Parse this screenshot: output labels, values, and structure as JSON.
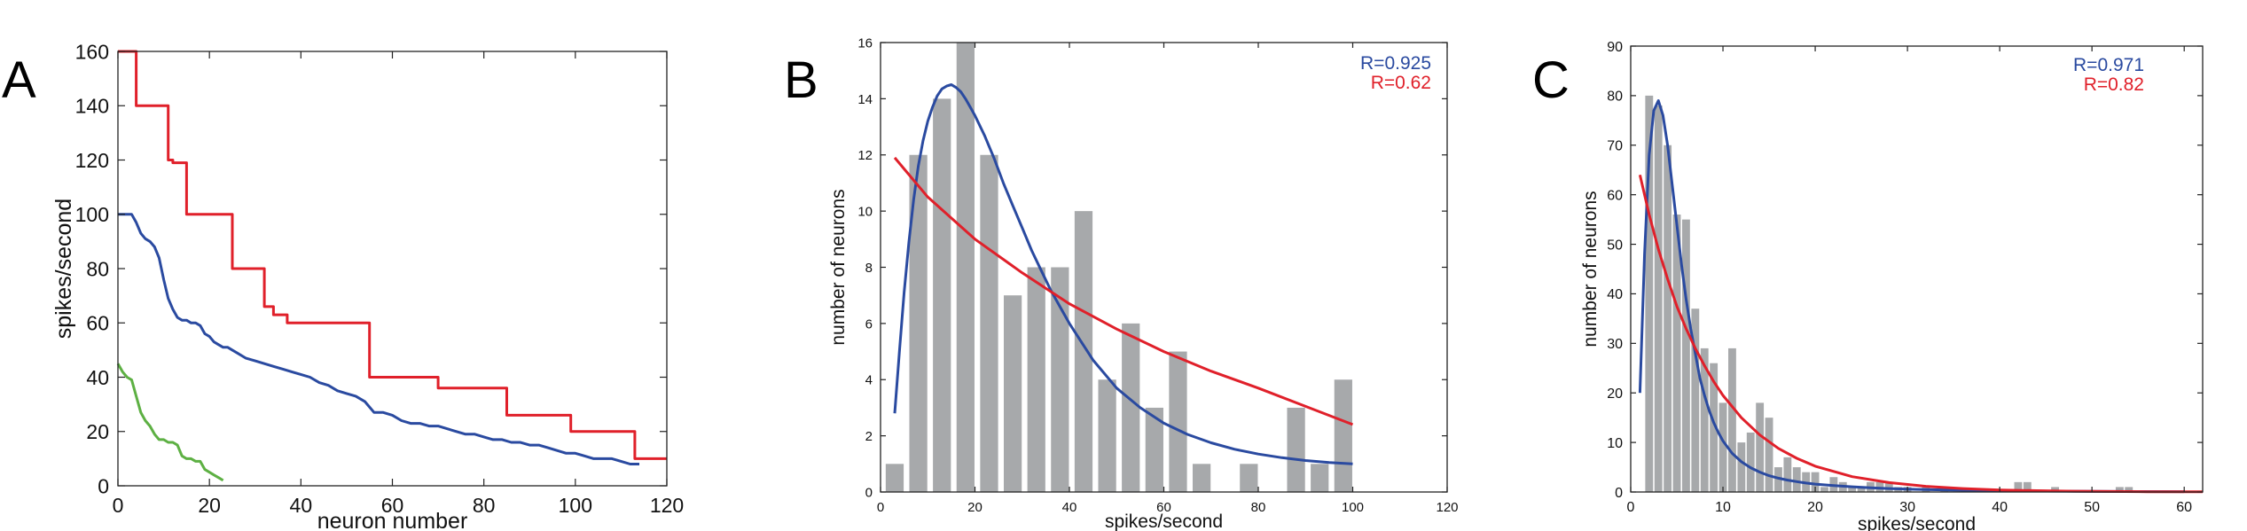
{
  "panels": {
    "A": {
      "label": "A"
    },
    "B": {
      "label": "B"
    },
    "C": {
      "label": "C"
    }
  },
  "chart_data": [
    {
      "panel": "A",
      "type": "line",
      "xlabel": "neuron number",
      "ylabel": "spikes/second",
      "xlim": [
        0,
        120
      ],
      "ylim": [
        0,
        160
      ],
      "xticks": [
        0,
        20,
        40,
        60,
        80,
        100,
        120
      ],
      "yticks": [
        0,
        20,
        40,
        60,
        80,
        100,
        120,
        140,
        160
      ],
      "grid": false,
      "series": [
        {
          "color": "#e0202a",
          "x": [
            0,
            4,
            4,
            11,
            11,
            12,
            12,
            15,
            15,
            25,
            25,
            32,
            32,
            34,
            34,
            37,
            37,
            55,
            55,
            70,
            70,
            85,
            85,
            99,
            99,
            113,
            113,
            120
          ],
          "y": [
            160,
            160,
            140,
            140,
            120,
            120,
            119,
            119,
            100,
            100,
            80,
            80,
            66,
            66,
            63,
            63,
            60,
            60,
            40,
            40,
            36,
            36,
            26,
            26,
            20,
            20,
            10,
            10
          ]
        },
        {
          "color": "#2a4aa0",
          "x": [
            0,
            3,
            4,
            5,
            6,
            7,
            8,
            9,
            10,
            11,
            12,
            13,
            14,
            15,
            16,
            17,
            18,
            19,
            20,
            21,
            22,
            23,
            24,
            25,
            26,
            28,
            30,
            32,
            34,
            36,
            38,
            40,
            42,
            44,
            46,
            48,
            50,
            52,
            54,
            56,
            58,
            60,
            62,
            64,
            66,
            68,
            70,
            72,
            74,
            76,
            78,
            80,
            82,
            84,
            86,
            88,
            90,
            92,
            94,
            96,
            98,
            100,
            102,
            104,
            106,
            108,
            110,
            112,
            114
          ],
          "y": [
            100,
            100,
            97,
            93,
            91,
            90,
            88,
            84,
            76,
            69,
            65,
            62,
            61,
            61,
            60,
            60,
            59,
            56,
            55,
            53,
            52,
            51,
            51,
            50,
            49,
            47,
            46,
            45,
            44,
            43,
            42,
            41,
            40,
            38,
            37,
            35,
            34,
            33,
            31,
            27,
            27,
            26,
            24,
            23,
            23,
            22,
            22,
            21,
            20,
            19,
            19,
            18,
            17,
            17,
            16,
            16,
            15,
            15,
            14,
            13,
            12,
            12,
            11,
            10,
            10,
            10,
            9,
            8,
            8
          ]
        },
        {
          "color": "#5db043",
          "x": [
            0,
            1,
            2,
            3,
            4,
            5,
            6,
            7,
            8,
            9,
            10,
            11,
            12,
            13,
            14,
            15,
            16,
            17,
            18,
            19,
            20,
            21,
            22,
            23
          ],
          "y": [
            45,
            42,
            40,
            39,
            33,
            27,
            24,
            22,
            19,
            17,
            17,
            16,
            16,
            15,
            11,
            10,
            10,
            9,
            9,
            6,
            5,
            4,
            3,
            2
          ]
        }
      ]
    },
    {
      "panel": "B",
      "type": "bar",
      "xlabel": "spikes/second",
      "ylabel": "number of neurons",
      "xlim": [
        0,
        120
      ],
      "ylim": [
        0,
        16
      ],
      "xticks": [
        0,
        20,
        40,
        60,
        80,
        100,
        120
      ],
      "yticks": [
        0,
        2,
        4,
        6,
        8,
        10,
        12,
        14,
        16
      ],
      "grid": false,
      "bar_color": "#a7a9ab",
      "bar_width": 3.8,
      "x": [
        3,
        8,
        13,
        18,
        23,
        28,
        33,
        38,
        43,
        48,
        53,
        58,
        63,
        68,
        73,
        78,
        83,
        88,
        93,
        98
      ],
      "values": [
        1,
        12,
        14,
        16,
        12,
        7,
        8,
        8,
        10,
        4,
        6,
        3,
        5,
        1,
        0,
        1,
        0,
        3,
        1,
        4
      ],
      "fits": [
        {
          "color": "#2a4aa0",
          "label": "R=0.925",
          "x": [
            3,
            4,
            5,
            6,
            7,
            8,
            9,
            10,
            11,
            12,
            13,
            14,
            15,
            16,
            17,
            18,
            19,
            20,
            22,
            24,
            26,
            28,
            30,
            32,
            34,
            36,
            38,
            40,
            45,
            50,
            55,
            60,
            65,
            70,
            75,
            80,
            85,
            90,
            95,
            100
          ],
          "y": [
            2.8,
            5.0,
            7.1,
            8.9,
            10.4,
            11.6,
            12.5,
            13.2,
            13.7,
            14.1,
            14.35,
            14.45,
            14.5,
            14.4,
            14.25,
            14.0,
            13.7,
            13.4,
            12.7,
            11.9,
            11.0,
            10.2,
            9.4,
            8.6,
            7.9,
            7.2,
            6.6,
            6.0,
            4.7,
            3.7,
            3.0,
            2.45,
            2.05,
            1.75,
            1.52,
            1.35,
            1.22,
            1.12,
            1.05,
            1.0
          ]
        },
        {
          "color": "#e0202a",
          "label": "R=0.62",
          "x": [
            3,
            10,
            20,
            30,
            40,
            50,
            60,
            70,
            80,
            90,
            100
          ],
          "y": [
            11.9,
            10.5,
            9.0,
            7.8,
            6.7,
            5.8,
            5.0,
            4.3,
            3.7,
            3.05,
            2.4
          ]
        }
      ]
    },
    {
      "panel": "C",
      "type": "bar",
      "xlabel": "spikes/second",
      "ylabel": "number of neurons",
      "xlim": [
        0,
        62
      ],
      "ylim": [
        0,
        90
      ],
      "xticks": [
        0,
        10,
        20,
        30,
        40,
        50,
        60
      ],
      "yticks": [
        0,
        10,
        20,
        30,
        40,
        50,
        60,
        70,
        80,
        90
      ],
      "grid": false,
      "bar_color": "#a7a9ab",
      "bar_width": 0.85,
      "x": [
        2,
        3,
        4,
        5,
        6,
        7,
        8,
        9,
        10,
        11,
        12,
        13,
        14,
        15,
        16,
        17,
        18,
        19,
        20,
        21,
        22,
        23,
        24,
        25,
        26,
        27,
        28,
        29,
        30,
        31,
        32,
        33,
        34,
        35,
        36,
        37,
        38,
        39,
        40,
        41,
        42,
        43,
        44,
        45,
        46,
        47,
        48,
        49,
        50,
        51,
        52,
        53,
        54
      ],
      "values": [
        80,
        78,
        70,
        56,
        55,
        37,
        29,
        26,
        18,
        29,
        10,
        12,
        18,
        15,
        5,
        7,
        5,
        4,
        4,
        1,
        3,
        2,
        1,
        1,
        2,
        2,
        2,
        1,
        1,
        0,
        1,
        0,
        1,
        0,
        0,
        0,
        0,
        0,
        0,
        0,
        2,
        2,
        0,
        0,
        1,
        0,
        0,
        0,
        0,
        0,
        0,
        1,
        1
      ],
      "fits": [
        {
          "color": "#2a4aa0",
          "label": "R=0.971",
          "x": [
            1,
            1.5,
            2,
            2.5,
            3,
            3.5,
            4,
            4.5,
            5,
            5.5,
            6,
            6.5,
            7,
            7.5,
            8,
            8.5,
            9,
            9.5,
            10,
            11,
            12,
            13,
            14,
            15,
            16,
            17,
            18,
            19,
            20,
            22,
            24,
            26,
            28,
            30,
            35,
            40,
            45,
            50,
            55,
            60
          ],
          "y": [
            20,
            48,
            68,
            77,
            79,
            76,
            70,
            62,
            54,
            46,
            39,
            33,
            28,
            23,
            19.5,
            16.5,
            14,
            12,
            10.3,
            7.8,
            6.1,
            4.9,
            4.0,
            3.3,
            2.8,
            2.4,
            2.1,
            1.8,
            1.6,
            1.3,
            1.05,
            0.85,
            0.7,
            0.58,
            0.38,
            0.26,
            0.18,
            0.13,
            0.09,
            0.07
          ]
        },
        {
          "color": "#e0202a",
          "label": "R=0.82",
          "x": [
            1,
            2,
            3,
            4,
            5,
            6,
            7,
            8,
            9,
            10,
            12,
            14,
            16,
            18,
            20,
            24,
            28,
            32,
            36,
            40,
            44,
            48,
            52,
            56,
            60,
            62
          ],
          "y": [
            64,
            56,
            49,
            43,
            37.5,
            33,
            29,
            25.5,
            22.3,
            19.5,
            15,
            11.5,
            8.8,
            6.8,
            5.2,
            3.1,
            1.9,
            1.15,
            0.7,
            0.42,
            0.26,
            0.16,
            0.1,
            0.06,
            0.04,
            0.03
          ]
        }
      ]
    }
  ]
}
